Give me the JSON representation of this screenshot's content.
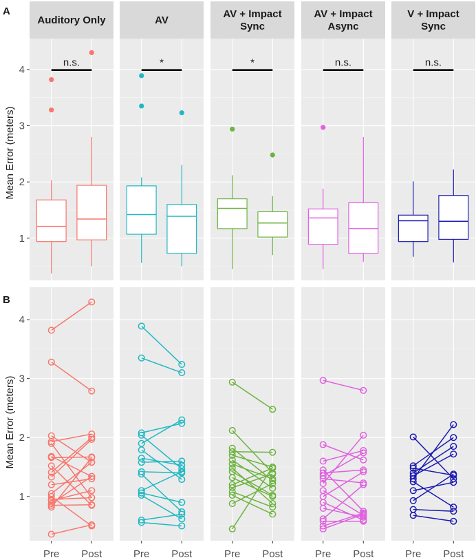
{
  "figure": {
    "panel_labels": [
      "A",
      "B"
    ],
    "ylabel": "Mean Error (meters)",
    "x_categories": [
      "Pre",
      "Post"
    ],
    "y_ticks": [
      1,
      2,
      3,
      4
    ],
    "ylim": [
      0.25,
      4.55
    ]
  },
  "chart_data": [
    {
      "type": "box",
      "panel": "A",
      "ylabel": "Mean Error (meters)",
      "categories": [
        "Pre",
        "Post"
      ],
      "ylim": [
        0.25,
        4.55
      ],
      "facets": [
        {
          "title": "Auditory Only",
          "color": "#f8766d",
          "significance": "n.s.",
          "boxes": [
            {
              "x": "Pre",
              "min": 0.37,
              "q1": 0.94,
              "median": 1.21,
              "q3": 1.68,
              "max": 2.03,
              "outliers": [
                3.28,
                3.82
              ]
            },
            {
              "x": "Post",
              "min": 0.5,
              "q1": 0.97,
              "median": 1.34,
              "q3": 1.94,
              "max": 2.8,
              "outliers": [
                4.3
              ]
            }
          ]
        },
        {
          "title": "AV",
          "color": "#1fb8c4",
          "significance": "*",
          "boxes": [
            {
              "x": "Pre",
              "min": 0.56,
              "q1": 1.07,
              "median": 1.42,
              "q3": 1.93,
              "max": 2.08,
              "outliers": [
                3.35,
                3.89
              ]
            },
            {
              "x": "Post",
              "min": 0.5,
              "q1": 0.73,
              "median": 1.39,
              "q3": 1.6,
              "max": 2.3,
              "outliers": [
                3.23
              ]
            }
          ]
        },
        {
          "title": "AV + Impact Sync",
          "color": "#6db33f",
          "significance": "*",
          "boxes": [
            {
              "x": "Pre",
              "min": 0.45,
              "q1": 1.17,
              "median": 1.53,
              "q3": 1.7,
              "max": 2.12,
              "outliers": [
                2.94
              ]
            },
            {
              "x": "Post",
              "min": 0.7,
              "q1": 1.02,
              "median": 1.27,
              "q3": 1.47,
              "max": 1.75,
              "outliers": [
                2.48
              ]
            }
          ]
        },
        {
          "title": "AV + Impact Async",
          "color": "#e060e0",
          "significance": "n.s.",
          "boxes": [
            {
              "x": "Pre",
              "min": 0.45,
              "q1": 0.89,
              "median": 1.36,
              "q3": 1.52,
              "max": 1.88,
              "outliers": [
                2.97
              ]
            },
            {
              "x": "Post",
              "min": 0.58,
              "q1": 0.73,
              "median": 1.17,
              "q3": 1.63,
              "max": 2.8,
              "outliers": []
            }
          ]
        },
        {
          "title": "V + Impact Sync",
          "color": "#1a1ab0",
          "significance": "n.s.",
          "boxes": [
            {
              "x": "Pre",
              "min": 0.67,
              "q1": 0.94,
              "median": 1.31,
              "q3": 1.41,
              "max": 2.01,
              "outliers": []
            },
            {
              "x": "Post",
              "min": 0.57,
              "q1": 0.98,
              "median": 1.3,
              "q3": 1.76,
              "max": 2.22,
              "outliers": []
            }
          ]
        }
      ]
    },
    {
      "type": "line",
      "panel": "B",
      "subtype": "paired",
      "ylabel": "Mean Error (meters)",
      "categories": [
        "Pre",
        "Post"
      ],
      "ylim": [
        0.25,
        4.55
      ],
      "facets": [
        {
          "title": "Auditory Only",
          "color": "#f8766d",
          "pairs": [
            [
              3.82,
              4.3
            ],
            [
              3.28,
              2.79
            ],
            [
              2.03,
              1.58
            ],
            [
              1.93,
              2.06
            ],
            [
              1.9,
              0.98
            ],
            [
              1.68,
              1.34
            ],
            [
              1.66,
              1.67
            ],
            [
              1.52,
              0.85
            ],
            [
              1.41,
              2.0
            ],
            [
              1.33,
              1.97
            ],
            [
              1.2,
              1.3
            ],
            [
              1.05,
              1.58
            ],
            [
              1.0,
              0.5
            ],
            [
              0.95,
              0.98
            ],
            [
              0.93,
              1.1
            ],
            [
              0.88,
              1.34
            ],
            [
              0.85,
              0.86
            ],
            [
              0.82,
              1.66
            ],
            [
              0.36,
              0.52
            ]
          ]
        },
        {
          "title": "AV",
          "color": "#1fb8c4",
          "pairs": [
            [
              3.89,
              3.24
            ],
            [
              3.35,
              3.1
            ],
            [
              2.08,
              2.24
            ],
            [
              2.04,
              1.47
            ],
            [
              1.9,
              2.3
            ],
            [
              1.79,
              1.29
            ],
            [
              1.65,
              1.53
            ],
            [
              1.58,
              1.6
            ],
            [
              1.42,
              1.4
            ],
            [
              1.38,
              0.74
            ],
            [
              1.1,
              1.42
            ],
            [
              1.06,
              0.9
            ],
            [
              1.02,
              0.62
            ],
            [
              0.6,
              0.7
            ],
            [
              0.56,
              0.5
            ]
          ]
        },
        {
          "title": "AV + Impact Sync",
          "color": "#6db33f",
          "pairs": [
            [
              2.94,
              2.48
            ],
            [
              2.12,
              1.4
            ],
            [
              1.82,
              1.27
            ],
            [
              1.76,
              1.75
            ],
            [
              1.7,
              1.5
            ],
            [
              1.62,
              1.14
            ],
            [
              1.55,
              1.3
            ],
            [
              1.48,
              0.88
            ],
            [
              1.42,
              1.02
            ],
            [
              1.32,
              1.0
            ],
            [
              1.2,
              1.48
            ],
            [
              1.15,
              1.38
            ],
            [
              1.08,
              0.82
            ],
            [
              1.02,
              0.7
            ],
            [
              0.88,
              1.22
            ],
            [
              0.45,
              1.5
            ]
          ]
        },
        {
          "title": "AV + Impact Async",
          "color": "#e060e0",
          "pairs": [
            [
              2.97,
              2.8
            ],
            [
              1.88,
              1.62
            ],
            [
              1.6,
              1.78
            ],
            [
              1.45,
              0.75
            ],
            [
              1.4,
              1.45
            ],
            [
              1.35,
              1.74
            ],
            [
              1.3,
              1.23
            ],
            [
              1.22,
              2.04
            ],
            [
              1.1,
              0.68
            ],
            [
              1.0,
              1.42
            ],
            [
              0.9,
              0.6
            ],
            [
              0.8,
              0.65
            ],
            [
              0.62,
              1.2
            ],
            [
              0.58,
              0.58
            ],
            [
              0.5,
              0.72
            ],
            [
              0.45,
              0.7
            ]
          ]
        },
        {
          "title": "V + Impact Sync",
          "color": "#1a1ab0",
          "pairs": [
            [
              2.01,
              1.3
            ],
            [
              1.52,
              2.0
            ],
            [
              1.48,
              1.36
            ],
            [
              1.4,
              1.85
            ],
            [
              1.35,
              1.72
            ],
            [
              1.3,
              2.22
            ],
            [
              1.25,
              0.82
            ],
            [
              1.1,
              1.24
            ],
            [
              0.93,
              1.38
            ],
            [
              0.78,
              0.75
            ],
            [
              0.68,
              0.58
            ]
          ]
        }
      ]
    }
  ]
}
